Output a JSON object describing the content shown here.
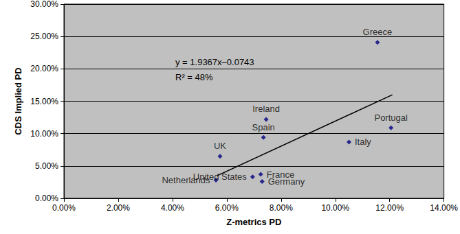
{
  "chart_data": {
    "type": "scatter",
    "x_label": "Z-metrics PD",
    "y_label": "CDS Implied PD",
    "marker": "diamond",
    "color": "#000080",
    "grid": true,
    "points": [
      {
        "label": "Greece",
        "x": 11.55,
        "y": 24.1
      },
      {
        "label": "Portugal",
        "x": 12.05,
        "y": 10.9
      },
      {
        "label": "Italy",
        "x": 10.5,
        "y": 8.7
      },
      {
        "label": "Ireland",
        "x": 7.45,
        "y": 12.2
      },
      {
        "label": "Spain",
        "x": 7.35,
        "y": 9.4
      },
      {
        "label": "UK",
        "x": 5.75,
        "y": 6.5
      },
      {
        "label": "Netherlands",
        "x": 5.6,
        "y": 2.8
      },
      {
        "label": "France",
        "x": 7.25,
        "y": 3.7
      },
      {
        "label": "United States",
        "x": 6.95,
        "y": 3.3
      },
      {
        "label": "Germany",
        "x": 7.3,
        "y": 2.6
      }
    ],
    "trendline": {
      "type": "line",
      "color": "#000000",
      "line_style": "solid",
      "x": [
        5.65,
        12.1
      ],
      "y": [
        3.51,
        16.0
      ]
    },
    "annotations": [
      "y = 1.9367x–0.0743",
      "R² = 48%"
    ],
    "xlim": [
      0,
      14
    ],
    "xticks": [
      {
        "value": 0,
        "label": "0.00%"
      },
      {
        "value": 2,
        "label": "2.00%"
      },
      {
        "value": 4,
        "label": "4.00%"
      },
      {
        "value": 6,
        "label": "6.00%"
      },
      {
        "value": 8,
        "label": "8.00%"
      },
      {
        "value": 10,
        "label": "10.00%"
      },
      {
        "value": 12,
        "label": "12.00%"
      },
      {
        "value": 14,
        "label": "14.00%"
      }
    ],
    "ylim": [
      0,
      30
    ],
    "yticks": [
      {
        "value": 0,
        "label": "0.00%"
      },
      {
        "value": 5,
        "label": "5.00%"
      },
      {
        "value": 10,
        "label": "10.00%"
      },
      {
        "value": 15,
        "label": "15.00%"
      },
      {
        "value": 20,
        "label": "20.00%"
      },
      {
        "value": 25,
        "label": "25.00%"
      },
      {
        "value": 30,
        "label": "30.00%"
      }
    ]
  }
}
